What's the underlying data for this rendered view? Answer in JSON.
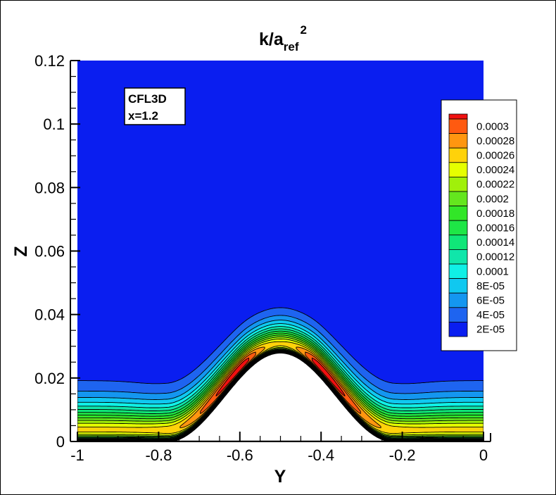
{
  "chart_data": {
    "type": "contour",
    "title": {
      "main": "k/a",
      "sub": "ref",
      "sup": "2"
    },
    "xlabel": "Y",
    "ylabel": "Z",
    "xlim": [
      -1,
      0
    ],
    "ylim": [
      0,
      0.12
    ],
    "x_ticks": [
      "-1",
      "-0.8",
      "-0.6",
      "-0.4",
      "-0.2",
      "0"
    ],
    "x_tick_values": [
      -1,
      -0.8,
      -0.6,
      -0.4,
      -0.2,
      0
    ],
    "y_ticks": [
      "0",
      "0.02",
      "0.04",
      "0.06",
      "0.08",
      "0.1",
      "0.12"
    ],
    "y_tick_values": [
      0,
      0.02,
      0.04,
      0.06,
      0.08,
      0.1,
      0.12
    ],
    "annotation": [
      "CFL3D",
      "x=1.2"
    ],
    "legend": {
      "placement": "right",
      "labels": [
        "0.0003",
        "0.00028",
        "0.00026",
        "0.00024",
        "0.00022",
        "0.0002",
        "0.00018",
        "0.00016",
        "0.00014",
        "0.00012",
        "0.0001",
        "8E-05",
        "6E-05",
        "4E-05",
        "2E-05"
      ]
    },
    "levels": [
      2e-05,
      4e-05,
      6e-05,
      8e-05,
      0.0001,
      0.00012,
      0.00014,
      0.00016,
      0.00018,
      0.0002,
      0.00022,
      0.00024,
      0.00026,
      0.00028,
      0.0003
    ],
    "band_colors": [
      "#0a1ef0",
      "#1e64f0",
      "#1496f0",
      "#10c8f0",
      "#10f0e6",
      "#10e6aa",
      "#10e678",
      "#1ee646",
      "#32e628",
      "#64e61e",
      "#a0f00a",
      "#e6ff00",
      "#ffd20a",
      "#ff9610",
      "#ff5a10",
      "#f01010"
    ],
    "terrain": {
      "peak_y": -0.5,
      "peak_z": 0.028,
      "base_halfwidth": 0.28
    },
    "max_value_region": "two lobes on bump flanks near y=-0.58 and y=-0.42"
  }
}
